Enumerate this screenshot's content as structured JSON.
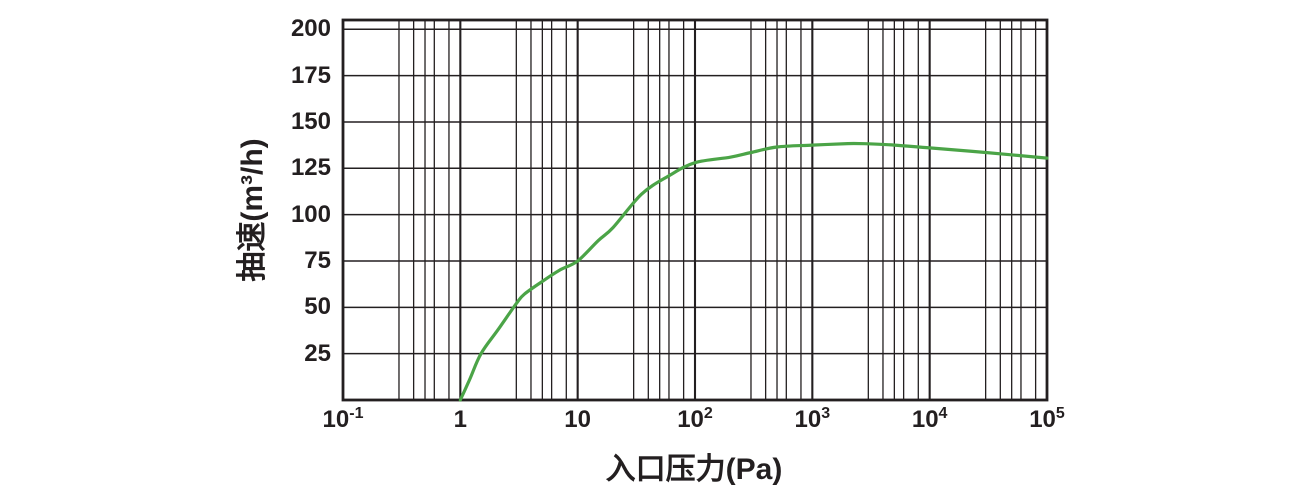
{
  "chart_data": {
    "type": "line",
    "xlabel": "入口压力(Pa)",
    "ylabel": "抽速(m³/h)",
    "x_scale": "log",
    "x_range": [
      0.1,
      100000
    ],
    "y_range": [
      0,
      205
    ],
    "y_ticks": [
      25,
      50,
      75,
      100,
      125,
      150,
      175,
      200
    ],
    "x_ticks": [
      {
        "base": "10",
        "sup": "-1",
        "value": 0.1
      },
      {
        "base": "1",
        "value": 1
      },
      {
        "base": "10",
        "value": 10
      },
      {
        "base": "10",
        "sup": "2",
        "value": 100
      },
      {
        "base": "10",
        "sup": "3",
        "value": 1000
      },
      {
        "base": "10",
        "sup": "4",
        "value": 10000
      },
      {
        "base": "10",
        "sup": "5",
        "value": 100000
      }
    ],
    "minor_tick_multipliers": [
      3,
      4,
      5,
      6,
      8
    ],
    "grid": true,
    "legend_position": "none",
    "colors": {
      "curve": "#4ba447",
      "axis": "#231f20",
      "background": "#ffffff"
    },
    "series": [
      {
        "name": "pumping-speed",
        "points": [
          [
            1,
            0
          ],
          [
            1.2,
            11
          ],
          [
            1.5,
            25
          ],
          [
            2.1,
            38
          ],
          [
            3,
            52
          ],
          [
            3.5,
            57
          ],
          [
            5,
            64
          ],
          [
            7,
            70
          ],
          [
            10,
            75
          ],
          [
            15,
            86
          ],
          [
            20,
            93
          ],
          [
            35,
            111
          ],
          [
            60,
            121
          ],
          [
            100,
            128
          ],
          [
            200,
            131
          ],
          [
            300,
            133.5
          ],
          [
            500,
            136.5
          ],
          [
            1000,
            137.5
          ],
          [
            2000,
            138.3
          ],
          [
            3000,
            138.2
          ],
          [
            5000,
            137.5
          ],
          [
            10000,
            136
          ],
          [
            30000,
            133.5
          ],
          [
            100000,
            130.5
          ]
        ]
      }
    ]
  }
}
